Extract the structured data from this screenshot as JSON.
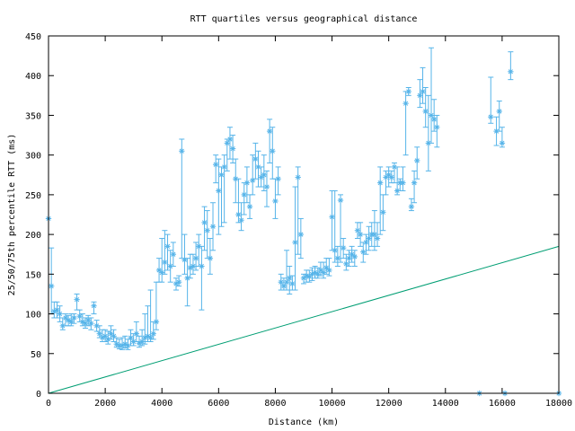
{
  "chart_data": {
    "type": "scatter",
    "title": "RTT quartiles versus geographical distance",
    "xlabel": "Distance (km)",
    "ylabel": "25/50/75th percentile RTT (ms)",
    "xlim": [
      0,
      18000
    ],
    "ylim": [
      0,
      450
    ],
    "xticks": [
      0,
      2000,
      4000,
      6000,
      8000,
      10000,
      12000,
      14000,
      16000,
      18000
    ],
    "yticks": [
      0,
      50,
      100,
      150,
      200,
      250,
      300,
      350,
      400,
      450
    ],
    "grid": false,
    "legend": "none",
    "colors": {
      "points": "#56b4e9",
      "line": "#009e73",
      "axes": "#000000"
    },
    "series": [
      {
        "kind": "errorbars",
        "points": [
          [
            0,
            220,
            220,
            220
          ],
          [
            100,
            135,
            100,
            183
          ],
          [
            200,
            103,
            95,
            115
          ],
          [
            300,
            105,
            95,
            115
          ],
          [
            400,
            100,
            90,
            110
          ],
          [
            500,
            85,
            80,
            95
          ],
          [
            600,
            95,
            85,
            100
          ],
          [
            700,
            92,
            85,
            98
          ],
          [
            800,
            90,
            85,
            100
          ],
          [
            900,
            95,
            88,
            100
          ],
          [
            1000,
            118,
            105,
            125
          ],
          [
            1100,
            97,
            90,
            105
          ],
          [
            1200,
            90,
            85,
            100
          ],
          [
            1300,
            88,
            82,
            95
          ],
          [
            1400,
            92,
            85,
            98
          ],
          [
            1500,
            88,
            80,
            95
          ],
          [
            1600,
            110,
            100,
            115
          ],
          [
            1700,
            85,
            78,
            92
          ],
          [
            1800,
            75,
            70,
            85
          ],
          [
            1900,
            70,
            65,
            80
          ],
          [
            2000,
            72,
            65,
            80
          ],
          [
            2100,
            68,
            62,
            78
          ],
          [
            2200,
            75,
            68,
            85
          ],
          [
            2300,
            72,
            65,
            80
          ],
          [
            2400,
            62,
            58,
            70
          ],
          [
            2500,
            60,
            56,
            68
          ],
          [
            2600,
            60,
            55,
            70
          ],
          [
            2700,
            62,
            57,
            72
          ],
          [
            2800,
            60,
            55,
            68
          ],
          [
            2900,
            70,
            60,
            80
          ],
          [
            3000,
            65,
            60,
            75
          ],
          [
            3100,
            75,
            65,
            90
          ],
          [
            3200,
            63,
            58,
            72
          ],
          [
            3300,
            65,
            60,
            80
          ],
          [
            3400,
            70,
            62,
            100
          ],
          [
            3500,
            72,
            65,
            110
          ],
          [
            3600,
            70,
            65,
            130
          ],
          [
            3700,
            75,
            68,
            90
          ],
          [
            3800,
            90,
            80,
            140
          ],
          [
            3900,
            155,
            140,
            170
          ],
          [
            4000,
            152,
            140,
            195
          ],
          [
            4100,
            165,
            150,
            205
          ],
          [
            4200,
            185,
            155,
            200
          ],
          [
            4300,
            160,
            140,
            180
          ],
          [
            4400,
            175,
            160,
            190
          ],
          [
            4500,
            138,
            130,
            145
          ],
          [
            4600,
            140,
            135,
            148
          ],
          [
            4700,
            305,
            170,
            320
          ],
          [
            4800,
            168,
            150,
            200
          ],
          [
            4900,
            145,
            110,
            170
          ],
          [
            5000,
            158,
            145,
            175
          ],
          [
            5100,
            160,
            150,
            175
          ],
          [
            5200,
            170,
            155,
            190
          ],
          [
            5300,
            185,
            160,
            200
          ],
          [
            5400,
            160,
            105,
            185
          ],
          [
            5500,
            215,
            180,
            235
          ],
          [
            5600,
            205,
            170,
            230
          ],
          [
            5700,
            170,
            150,
            195
          ],
          [
            5800,
            210,
            180,
            240
          ],
          [
            5900,
            288,
            265,
            300
          ],
          [
            6000,
            255,
            200,
            295
          ],
          [
            6100,
            275,
            210,
            285
          ],
          [
            6200,
            285,
            215,
            300
          ],
          [
            6300,
            315,
            280,
            320
          ],
          [
            6400,
            320,
            295,
            335
          ],
          [
            6500,
            308,
            290,
            325
          ],
          [
            6600,
            270,
            240,
            295
          ],
          [
            6700,
            225,
            215,
            270
          ],
          [
            6800,
            218,
            205,
            240
          ],
          [
            6900,
            250,
            225,
            265
          ],
          [
            7000,
            265,
            240,
            285
          ],
          [
            7100,
            235,
            220,
            250
          ],
          [
            7200,
            268,
            250,
            300
          ],
          [
            7300,
            295,
            270,
            315
          ],
          [
            7400,
            285,
            260,
            305
          ],
          [
            7500,
            272,
            260,
            285
          ],
          [
            7600,
            275,
            255,
            300
          ],
          [
            7700,
            260,
            235,
            280
          ],
          [
            7800,
            330,
            290,
            345
          ],
          [
            7900,
            305,
            270,
            335
          ],
          [
            8000,
            242,
            220,
            270
          ],
          [
            8100,
            270,
            250,
            285
          ],
          [
            8200,
            140,
            130,
            150
          ],
          [
            8300,
            135,
            130,
            145
          ],
          [
            8400,
            140,
            130,
            180
          ],
          [
            8500,
            145,
            125,
            160
          ],
          [
            8600,
            138,
            130,
            148
          ],
          [
            8700,
            190,
            130,
            260
          ],
          [
            8800,
            272,
            175,
            285
          ],
          [
            8900,
            200,
            170,
            220
          ],
          [
            9000,
            145,
            138,
            150
          ],
          [
            9100,
            148,
            140,
            155
          ],
          [
            9200,
            147,
            140,
            155
          ],
          [
            9300,
            150,
            142,
            158
          ],
          [
            9400,
            152,
            145,
            160
          ],
          [
            9500,
            150,
            145,
            158
          ],
          [
            9600,
            155,
            148,
            165
          ],
          [
            9700,
            152,
            145,
            165
          ],
          [
            9800,
            158,
            150,
            170
          ],
          [
            9900,
            155,
            148,
            170
          ],
          [
            10000,
            222,
            180,
            255
          ],
          [
            10100,
            180,
            165,
            255
          ],
          [
            10200,
            170,
            160,
            185
          ],
          [
            10300,
            243,
            165,
            250
          ],
          [
            10400,
            183,
            170,
            195
          ],
          [
            10500,
            163,
            155,
            175
          ],
          [
            10600,
            170,
            160,
            180
          ],
          [
            10700,
            175,
            165,
            185
          ],
          [
            10800,
            172,
            160,
            180
          ],
          [
            10900,
            205,
            195,
            215
          ],
          [
            11000,
            200,
            185,
            215
          ],
          [
            11100,
            178,
            165,
            190
          ],
          [
            11200,
            190,
            175,
            200
          ],
          [
            11300,
            195,
            180,
            210
          ],
          [
            11400,
            200,
            185,
            215
          ],
          [
            11500,
            200,
            180,
            230
          ],
          [
            11600,
            195,
            185,
            215
          ],
          [
            11700,
            265,
            200,
            285
          ],
          [
            11800,
            228,
            205,
            250
          ],
          [
            11900,
            272,
            250,
            280
          ],
          [
            12000,
            275,
            260,
            285
          ],
          [
            12100,
            272,
            265,
            280
          ],
          [
            12200,
            285,
            265,
            290
          ],
          [
            12300,
            255,
            250,
            285
          ],
          [
            12400,
            265,
            255,
            270
          ],
          [
            12500,
            265,
            255,
            285
          ],
          [
            12600,
            365,
            300,
            380
          ],
          [
            12700,
            380,
            375,
            385
          ],
          [
            12800,
            235,
            230,
            245
          ],
          [
            12900,
            265,
            240,
            280
          ],
          [
            13000,
            293,
            270,
            310
          ],
          [
            13100,
            375,
            360,
            395
          ],
          [
            13200,
            380,
            365,
            410
          ],
          [
            13300,
            355,
            335,
            385
          ],
          [
            13400,
            315,
            280,
            375
          ],
          [
            13500,
            350,
            315,
            435
          ],
          [
            13600,
            345,
            330,
            370
          ],
          [
            13700,
            335,
            310,
            350
          ],
          [
            15200,
            0,
            0,
            0
          ],
          [
            15600,
            348,
            340,
            398
          ],
          [
            15800,
            330,
            312,
            348
          ],
          [
            15900,
            355,
            330,
            368
          ],
          [
            16000,
            315,
            310,
            335
          ],
          [
            16100,
            0,
            0,
            0
          ],
          [
            16300,
            405,
            395,
            430
          ],
          [
            18000,
            0,
            0,
            0
          ]
        ]
      },
      {
        "kind": "line",
        "x": [
          0,
          18000
        ],
        "y": [
          0,
          185
        ]
      }
    ]
  }
}
